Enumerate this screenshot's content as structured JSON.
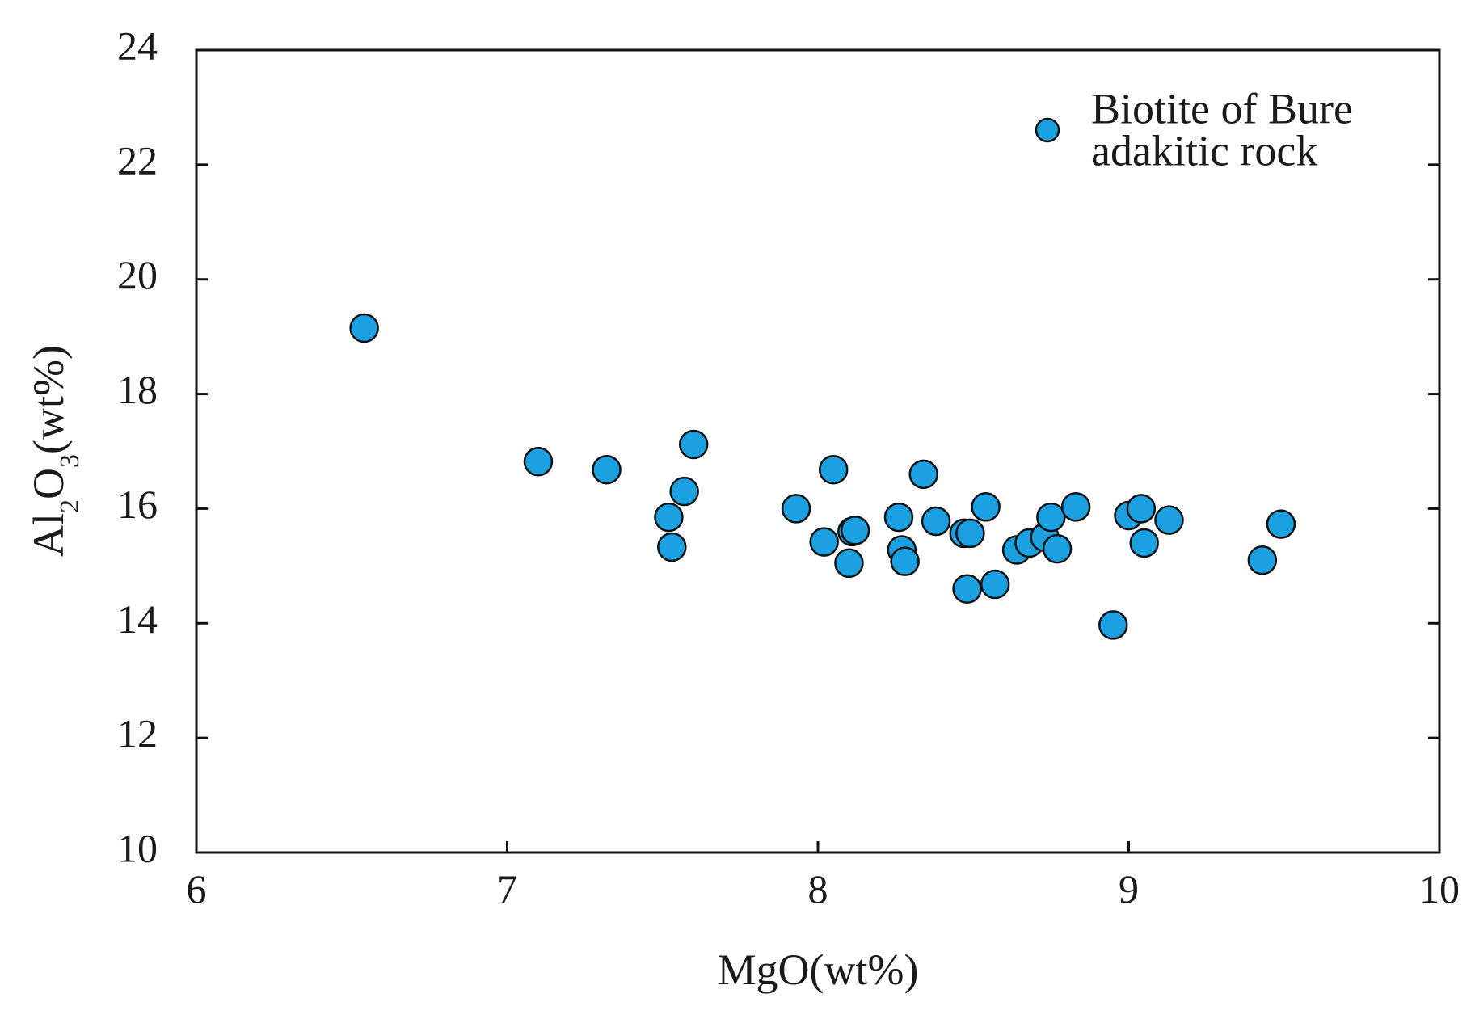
{
  "chart_data": {
    "type": "scatter",
    "xlabel": "MgO(wt%)",
    "ylabel": {
      "prefix": "Al",
      "sub1": "2",
      "mid": "O",
      "sub2": "3",
      "suffix": "(wt%)"
    },
    "xlim": [
      6,
      10
    ],
    "ylim": [
      10,
      24
    ],
    "xticks": [
      "6",
      "7",
      "8",
      "9",
      "10"
    ],
    "yticks": [
      "10",
      "12",
      "14",
      "16",
      "18",
      "20",
      "22",
      "24"
    ],
    "grid": false,
    "legend_position": "top-right",
    "colors": {
      "marker_fill": "#1ba1e2",
      "marker_stroke": "#111111",
      "axis": "#111111"
    },
    "series": [
      {
        "name_lines": [
          "Biotite of Bure",
          "adakitic rock"
        ],
        "points": [
          [
            6.54,
            19.15
          ],
          [
            7.1,
            16.82
          ],
          [
            7.32,
            16.68
          ],
          [
            7.52,
            15.85
          ],
          [
            7.53,
            15.33
          ],
          [
            7.57,
            16.3
          ],
          [
            7.6,
            17.12
          ],
          [
            7.93,
            16.0
          ],
          [
            8.02,
            15.42
          ],
          [
            8.05,
            16.68
          ],
          [
            8.1,
            15.05
          ],
          [
            8.11,
            15.6
          ],
          [
            8.12,
            15.62
          ],
          [
            8.26,
            15.85
          ],
          [
            8.27,
            15.28
          ],
          [
            8.28,
            15.08
          ],
          [
            8.34,
            16.6
          ],
          [
            8.38,
            15.78
          ],
          [
            8.47,
            15.57
          ],
          [
            8.48,
            14.6
          ],
          [
            8.49,
            15.57
          ],
          [
            8.54,
            16.03
          ],
          [
            8.57,
            14.68
          ],
          [
            8.64,
            15.28
          ],
          [
            8.68,
            15.4
          ],
          [
            8.73,
            15.5
          ],
          [
            8.75,
            15.85
          ],
          [
            8.77,
            15.3
          ],
          [
            8.83,
            16.03
          ],
          [
            8.95,
            13.97
          ],
          [
            9.0,
            15.88
          ],
          [
            9.04,
            16.0
          ],
          [
            9.05,
            15.4
          ],
          [
            9.13,
            15.8
          ],
          [
            9.43,
            15.1
          ],
          [
            9.49,
            15.73
          ]
        ]
      }
    ]
  }
}
